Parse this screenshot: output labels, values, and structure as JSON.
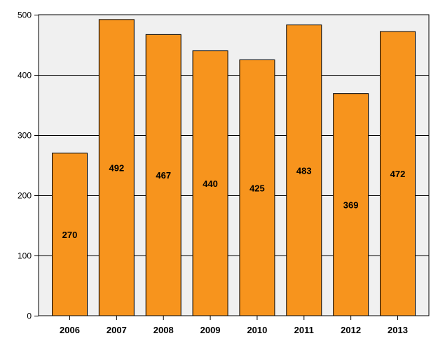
{
  "chart_data": {
    "type": "bar",
    "categories": [
      "2006",
      "2007",
      "2008",
      "2009",
      "2010",
      "2011",
      "2012",
      "2013"
    ],
    "values": [
      270,
      492,
      467,
      440,
      425,
      483,
      369,
      472
    ],
    "data_labels": [
      "270",
      "492",
      "467",
      "440",
      "425",
      "483",
      "369",
      "472"
    ],
    "title": "",
    "xlabel": "",
    "ylabel": "",
    "ylim": [
      0,
      500
    ],
    "yticks": [
      0,
      100,
      200,
      300,
      400,
      500
    ],
    "ytick_labels": [
      "0",
      "100",
      "200",
      "300",
      "400",
      "500"
    ],
    "grid": true,
    "legend": "none",
    "colors": {
      "bar_fill": "#f7941d",
      "bar_stroke": "#000000",
      "plot_background": "#f0f0f0",
      "gridline": "#000000"
    }
  }
}
